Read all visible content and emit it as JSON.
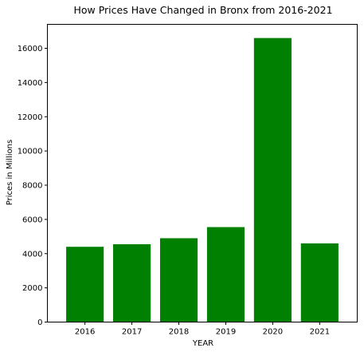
{
  "chart_data": {
    "type": "bar",
    "title": "How Prices Have Changed in Bronx from 2016-2021",
    "xlabel": "YEAR",
    "ylabel": "Prices in Millions",
    "categories": [
      "2016",
      "2017",
      "2018",
      "2019",
      "2020",
      "2021"
    ],
    "values": [
      4400,
      4550,
      4900,
      5550,
      16600,
      4600
    ],
    "ylim": [
      0,
      17400
    ],
    "yticks": [
      0,
      2000,
      4000,
      6000,
      8000,
      10000,
      12000,
      14000,
      16000
    ],
    "grid": false,
    "legend": "none",
    "bar_color": "#008000"
  }
}
